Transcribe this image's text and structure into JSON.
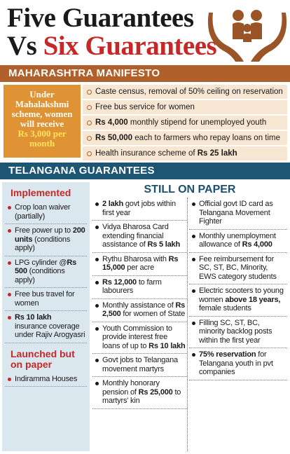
{
  "header": {
    "title_line1": "Five Guarantees",
    "title_line2_prefix": "Vs",
    "title_line2_highlight": "Six Guarantees"
  },
  "maharashtra": {
    "heading": "MAHARASHTRA MANIFESTO",
    "callout": {
      "text": "Under Mahalakshmi scheme, women will receive",
      "highlight": "Rs 3,000 per month"
    },
    "items": [
      [
        "Caste census, removal of 50% ceiling on reservation"
      ],
      [
        "Free bus service for women"
      ],
      [
        {
          "bold": "Rs 4,000"
        },
        " monthly stipend for unemployed youth"
      ],
      [
        {
          "bold": "Rs 50,000"
        },
        " each to farmers who repay loans on time"
      ],
      [
        "Health insurance scheme of ",
        {
          "bold": "Rs 25 lakh"
        }
      ]
    ]
  },
  "telangana": {
    "heading": "TELANGANA GUARANTEES",
    "implemented": {
      "heading": "Implemented",
      "items": [
        [
          "Crop loan waiver (partially)"
        ],
        [
          "Free power up to ",
          {
            "bold": "200 units"
          },
          " (conditions apply)"
        ],
        [
          "LPG cylinder @",
          {
            "bold": "Rs 500"
          },
          " (conditions apply)"
        ],
        [
          "Free bus travel for women"
        ],
        [
          {
            "bold": "Rs 10 lakh"
          },
          " insurance coverage under Rajiv Arogyasri"
        ]
      ]
    },
    "launched": {
      "heading": "Launched but on paper",
      "items": [
        [
          "Indiramma Houses"
        ]
      ]
    },
    "still_on_paper": {
      "heading": "STILL ON PAPER",
      "column_1": [
        [
          {
            "bold": "2 lakh"
          },
          " govt jobs within first year"
        ],
        [
          "Vidya Bharosa Card extending financial assistance of ",
          {
            "bold": "Rs 5 lakh"
          }
        ],
        [
          "Rythu Bharosa with ",
          {
            "bold": "Rs 15,000"
          },
          " per acre"
        ],
        [
          {
            "bold": "Rs 12,000"
          },
          " to farm labourers"
        ],
        [
          "Monthly assistance of ",
          {
            "bold": "Rs 2,500"
          },
          " for women of State"
        ],
        [
          "Youth Commission to provide interest free loans of up to ",
          {
            "bold": "Rs 10 lakh"
          }
        ],
        [
          "Govt jobs to Telangana movement martyrs"
        ],
        [
          "Monthly honorary pension of ",
          {
            "bold": "Rs 25,000"
          },
          " to martyrs' kin"
        ]
      ],
      "column_2": [
        [
          "Official govt ID card as Telangana Movement Fighter"
        ],
        [
          "Monthly unemployment allowance of ",
          {
            "bold": "Rs 4,000"
          }
        ],
        [
          "Fee reimbursement for SC, ST, BC, Minority, EWS category students"
        ],
        [
          "Electric scooters to young women ",
          {
            "bold": "above 18 years,"
          },
          " female students"
        ],
        [
          "Filling SC, ST, BC, minority backlog posts within the first year"
        ],
        [
          {
            "bold": "75% reservation"
          },
          " for Telangana youth in pvt companies"
        ]
      ]
    }
  }
}
